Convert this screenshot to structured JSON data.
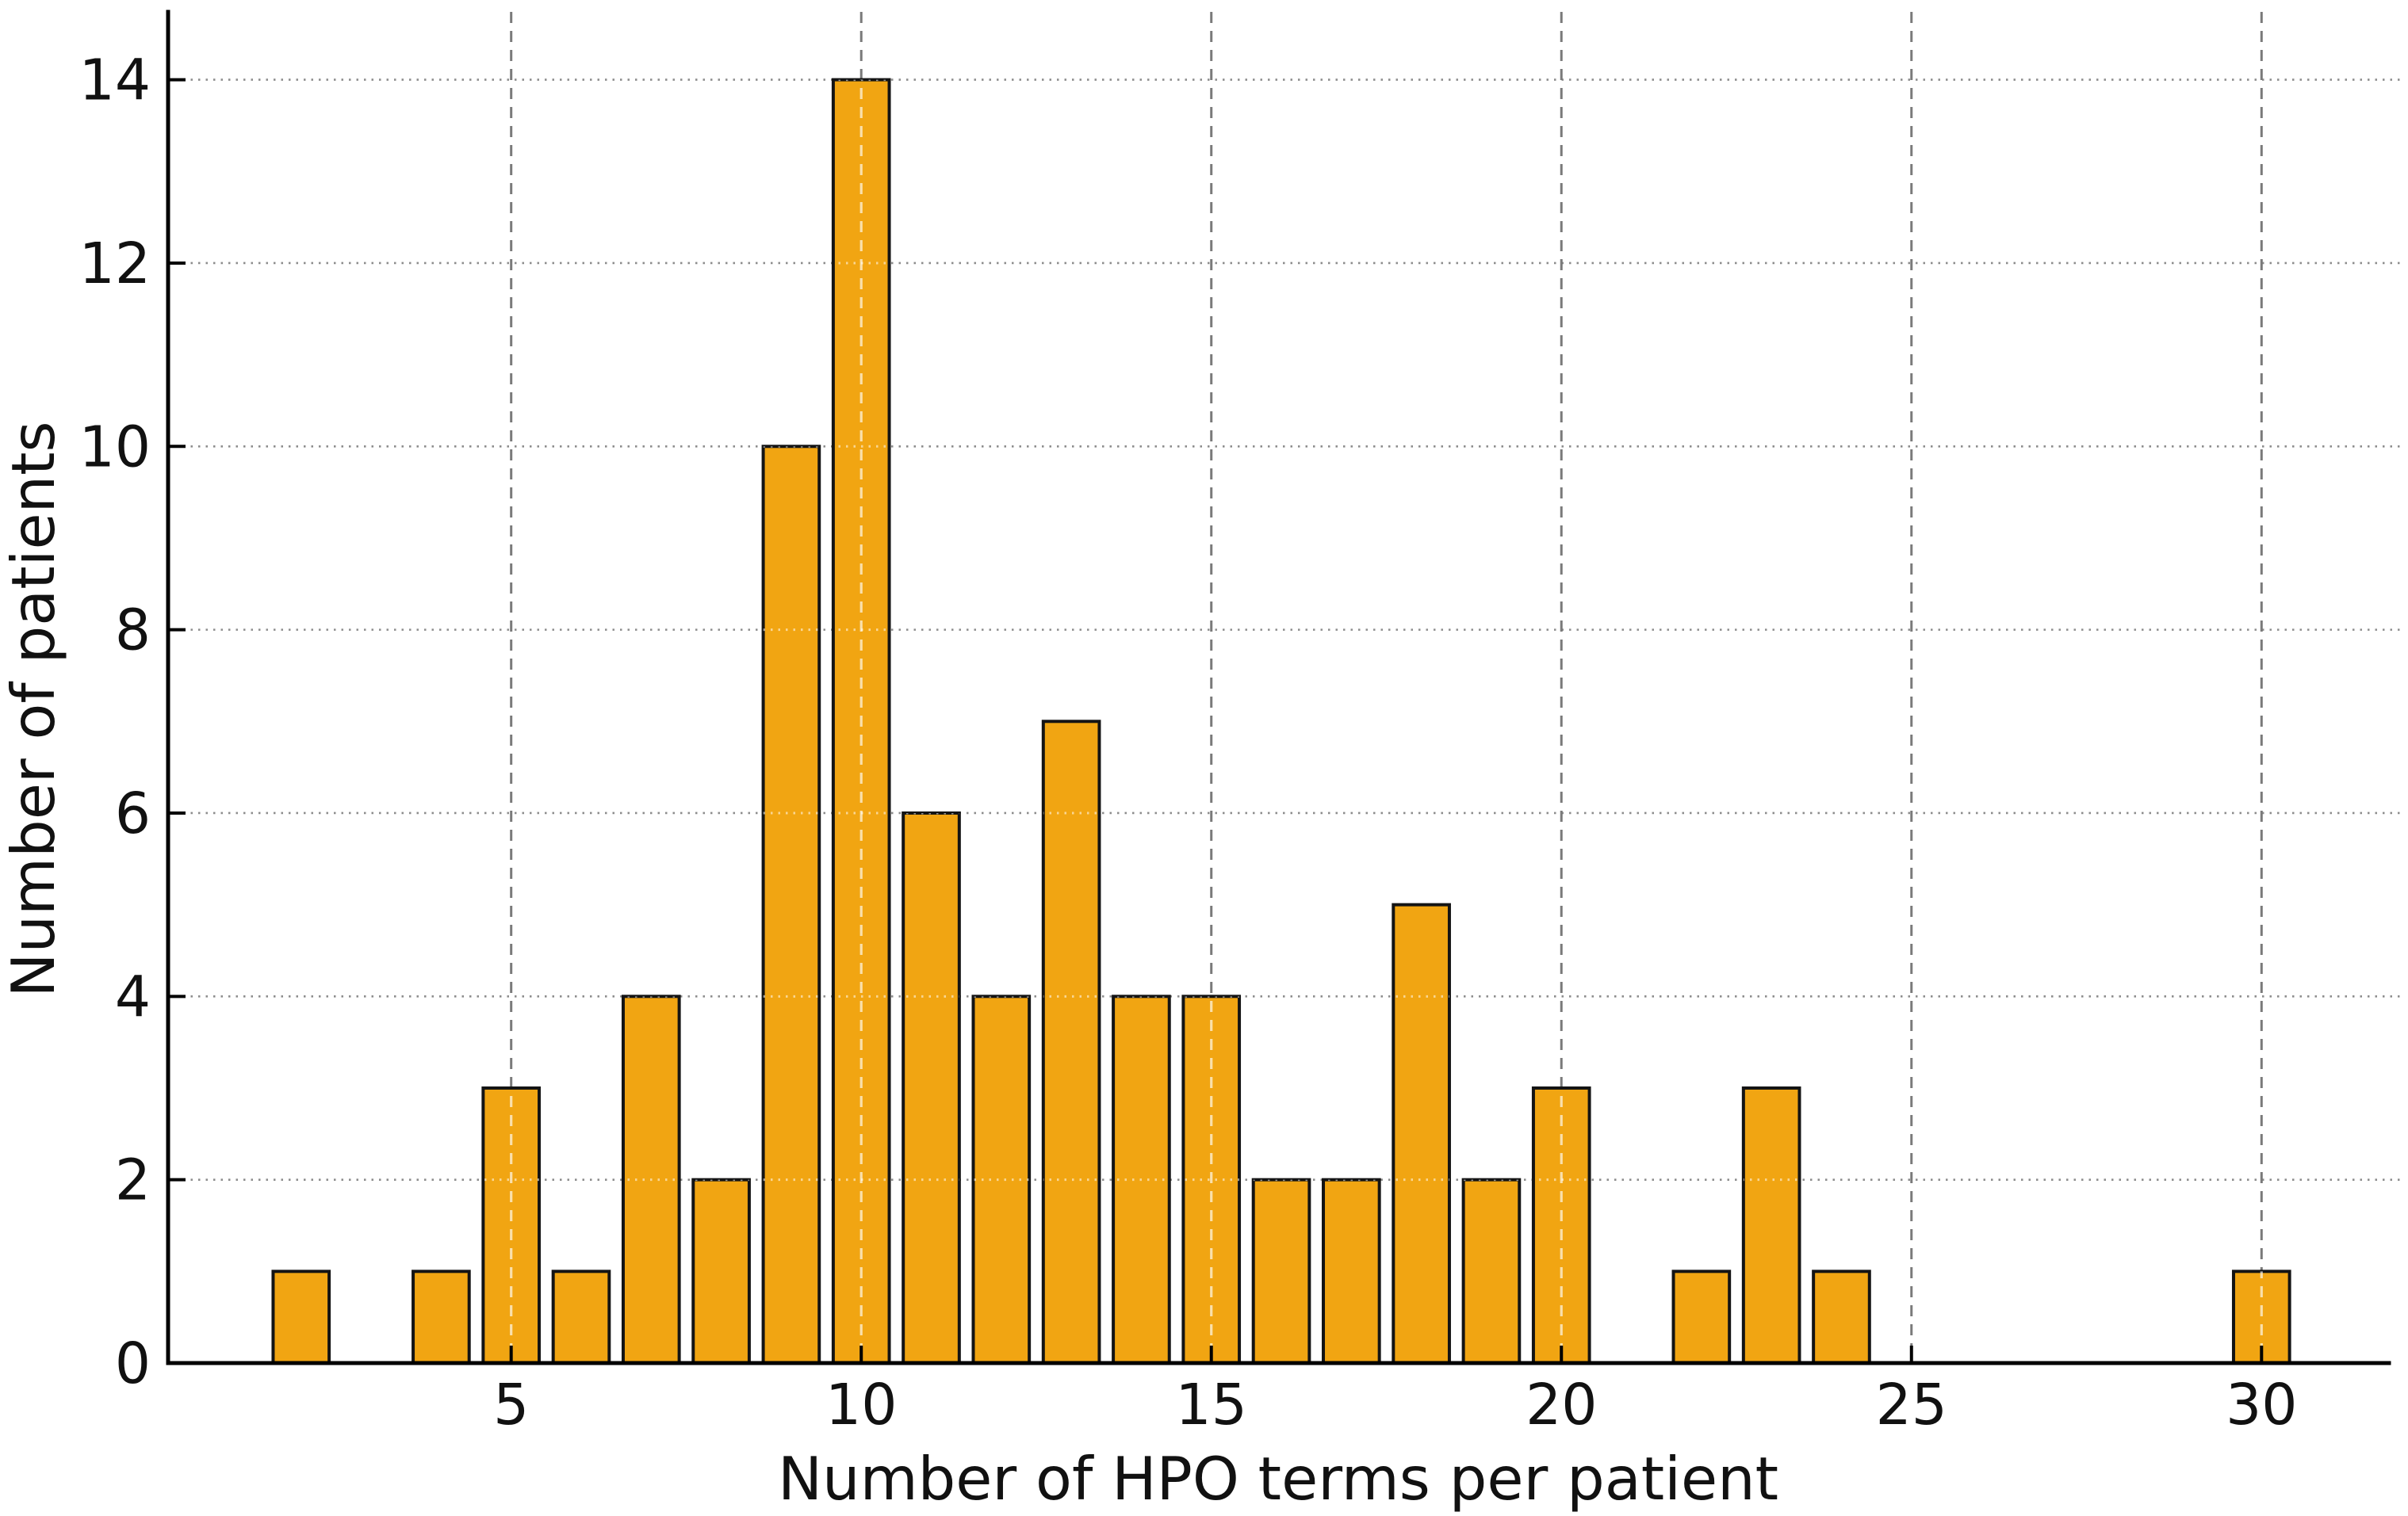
{
  "chart_data": {
    "type": "bar",
    "title": "",
    "xlabel": "Number of HPO terms per patient",
    "ylabel": "Number of patients",
    "x": [
      2,
      4,
      5,
      6,
      7,
      8,
      9,
      10,
      11,
      12,
      13,
      14,
      15,
      16,
      17,
      18,
      19,
      20,
      22,
      23,
      24,
      30
    ],
    "values": [
      1,
      1,
      3,
      1,
      4,
      2,
      10,
      14,
      6,
      4,
      7,
      4,
      4,
      2,
      2,
      5,
      2,
      3,
      1,
      3,
      1,
      1
    ],
    "bar_width": 0.8,
    "xticks": [
      5,
      10,
      15,
      20,
      25,
      30
    ],
    "yticks": [
      0,
      2,
      4,
      6,
      8,
      10,
      12,
      14
    ],
    "xlim": [
      0.1,
      31.82
    ],
    "ylim": [
      0,
      14.74
    ],
    "grid": {
      "horizontal": "dotted",
      "vertical": "dashed",
      "drawn_over_bars": true
    },
    "legend": null,
    "colors": {
      "bar_fill": "#F1A512",
      "bar_edge": "#141414",
      "axis": "#000000",
      "grid_horizontal": "#8c8c8c",
      "grid_vertical": "#7a7a7a",
      "text": "#111111",
      "background": "#ffffff"
    }
  }
}
